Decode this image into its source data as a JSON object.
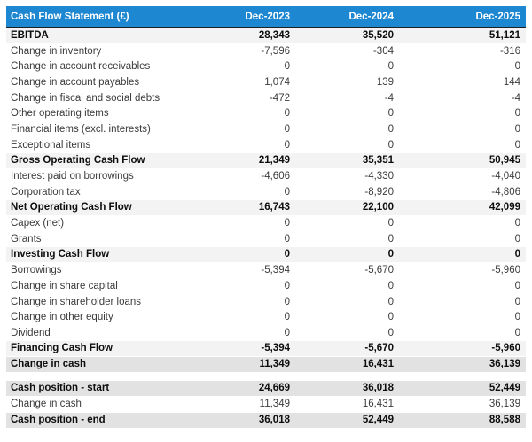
{
  "colors": {
    "header_bg": "#1e87d2",
    "header_text": "#ffffff",
    "header_border": "#1f1f1f",
    "subtotal_row_bg": "#f3f3f3",
    "summary_row_bg": "#e2e2e2",
    "plain_row_bg": "#ffffff",
    "body_text": "#3b3b3b"
  },
  "chart_data": {
    "type": "table",
    "title": "Cash Flow Statement (£)",
    "columns": [
      "Dec-2023",
      "Dec-2024",
      "Dec-2025"
    ],
    "layout": {
      "label_align": "left",
      "value_align": "right",
      "section_gap": true
    },
    "sections": [
      {
        "name": "cash-flow",
        "rows": [
          {
            "label": "EBITDA",
            "values": [
              "28,343",
              "35,520",
              "51,121"
            ],
            "style": "subtotal"
          },
          {
            "label": "Change in inventory",
            "values": [
              "-7,596",
              "-304",
              "-316"
            ],
            "style": "plain"
          },
          {
            "label": "Change in account receivables",
            "values": [
              "0",
              "0",
              "0"
            ],
            "style": "plain"
          },
          {
            "label": "Change in account payables",
            "values": [
              "1,074",
              "139",
              "144"
            ],
            "style": "plain"
          },
          {
            "label": "Change in fiscal and social debts",
            "values": [
              "-472",
              "-4",
              "-4"
            ],
            "style": "plain"
          },
          {
            "label": "Other operating items",
            "values": [
              "0",
              "0",
              "0"
            ],
            "style": "plain"
          },
          {
            "label": "Financial items (excl. interests)",
            "values": [
              "0",
              "0",
              "0"
            ],
            "style": "plain"
          },
          {
            "label": "Exceptional items",
            "values": [
              "0",
              "0",
              "0"
            ],
            "style": "plain"
          },
          {
            "label": "Gross Operating Cash Flow",
            "values": [
              "21,349",
              "35,351",
              "50,945"
            ],
            "style": "subtotal"
          },
          {
            "label": "Interest paid on borrowings",
            "values": [
              "-4,606",
              "-4,330",
              "-4,040"
            ],
            "style": "plain"
          },
          {
            "label": "Corporation tax",
            "values": [
              "0",
              "-8,920",
              "-4,806"
            ],
            "style": "plain"
          },
          {
            "label": "Net Operating Cash Flow",
            "values": [
              "16,743",
              "22,100",
              "42,099"
            ],
            "style": "subtotal"
          },
          {
            "label": "Capex (net)",
            "values": [
              "0",
              "0",
              "0"
            ],
            "style": "plain"
          },
          {
            "label": "Grants",
            "values": [
              "0",
              "0",
              "0"
            ],
            "style": "plain"
          },
          {
            "label": "Investing Cash Flow",
            "values": [
              "0",
              "0",
              "0"
            ],
            "style": "subtotal"
          },
          {
            "label": "Borrowings",
            "values": [
              "-5,394",
              "-5,670",
              "-5,960"
            ],
            "style": "plain"
          },
          {
            "label": "Change in share capital",
            "values": [
              "0",
              "0",
              "0"
            ],
            "style": "plain"
          },
          {
            "label": "Change in shareholder loans",
            "values": [
              "0",
              "0",
              "0"
            ],
            "style": "plain"
          },
          {
            "label": "Change in other equity",
            "values": [
              "0",
              "0",
              "0"
            ],
            "style": "plain"
          },
          {
            "label": "Dividend",
            "values": [
              "0",
              "0",
              "0"
            ],
            "style": "plain"
          },
          {
            "label": "Financing Cash Flow",
            "values": [
              "-5,394",
              "-5,670",
              "-5,960"
            ],
            "style": "subtotal"
          },
          {
            "label": "Change in cash",
            "values": [
              "11,349",
              "16,431",
              "36,139"
            ],
            "style": "summary"
          }
        ]
      },
      {
        "name": "cash-position",
        "rows": [
          {
            "label": "Cash position - start",
            "values": [
              "24,669",
              "36,018",
              "52,449"
            ],
            "style": "summary"
          },
          {
            "label": "Change in cash",
            "values": [
              "11,349",
              "16,431",
              "36,139"
            ],
            "style": "plain"
          },
          {
            "label": "Cash position - end",
            "values": [
              "36,018",
              "52,449",
              "88,588"
            ],
            "style": "summary"
          }
        ]
      }
    ]
  }
}
